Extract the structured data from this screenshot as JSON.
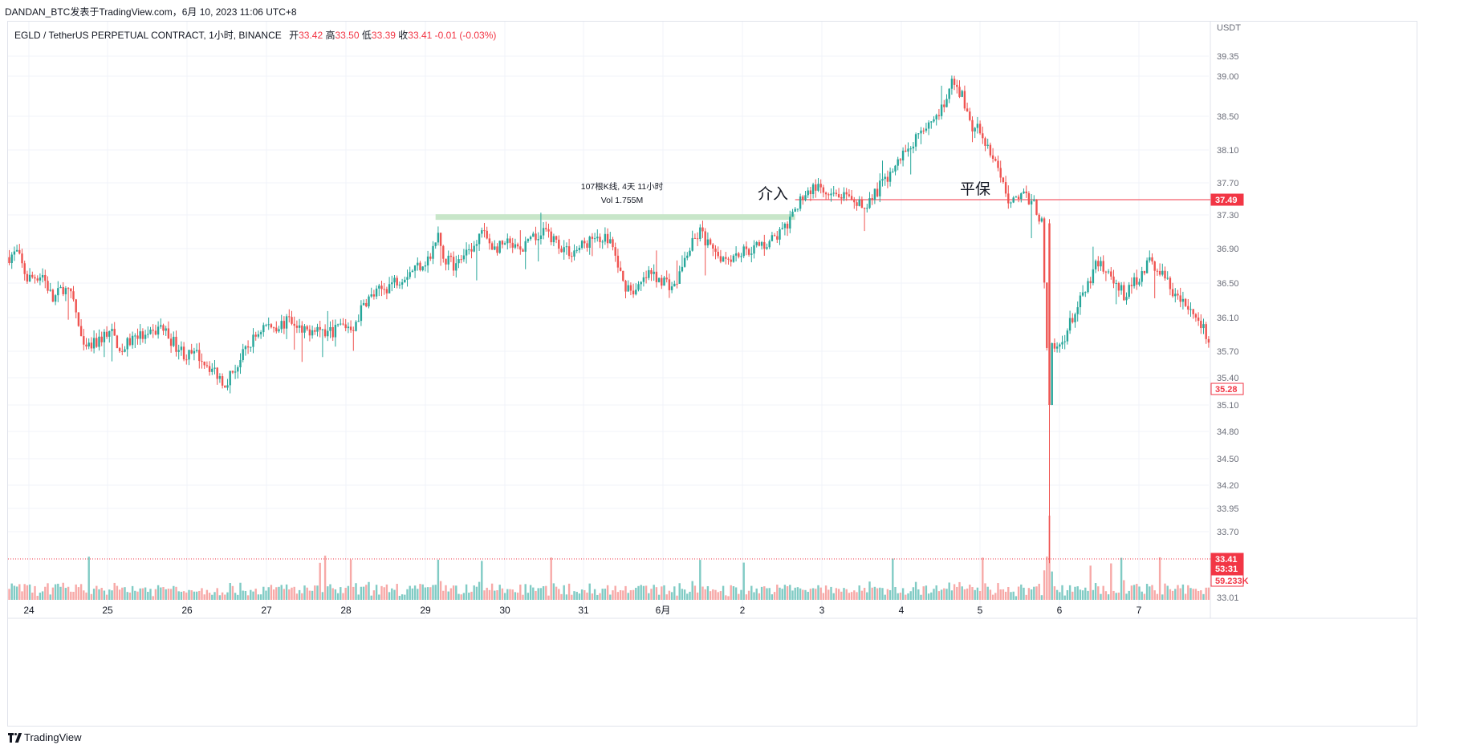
{
  "header": {
    "attribution": "DANDAN_BTC发表于TradingView.com，6月 10, 2023 11:06 UTC+8"
  },
  "legend": {
    "symbol": "EGLD / TetherUS PERPETUAL CONTRACT, 1小时, BINANCE",
    "open_label": "开",
    "open_value": "33.42",
    "high_label": "高",
    "high_value": "33.50",
    "low_label": "低",
    "low_value": "33.39",
    "close_label": "收",
    "close_value": "33.41",
    "change": "-0.01 (-0.03%)"
  },
  "footer": {
    "brand": "TradingView"
  },
  "colors": {
    "up": "#26a69a",
    "down": "#ef5350",
    "up_vol": "#80cbc4",
    "down_vol": "#f7a9a7",
    "range_bar": "#c8e6c9",
    "hline": "#f23645",
    "grid": "#f0f3fa",
    "axis_text": "#131722"
  },
  "chart_data": {
    "type": "candlestick",
    "currency_label": "USDT",
    "y_ticks": [
      "39.35",
      "39.00",
      "38.50",
      "38.10",
      "37.70",
      "37.30",
      "36.90",
      "36.50",
      "36.10",
      "35.70",
      "35.40",
      "35.10",
      "34.80",
      "34.50",
      "34.20",
      "33.95",
      "33.70",
      "33.01"
    ],
    "x_ticks": [
      "24",
      "25",
      "26",
      "27",
      "28",
      "29",
      "30",
      "31",
      "6月",
      "2",
      "3",
      "4",
      "5",
      "6",
      "7"
    ],
    "price_labels": {
      "horizontal_line": "37.49",
      "marked_level": "35.28",
      "last_price": "33.41",
      "countdown": "53:31",
      "volume": "59.233K"
    },
    "annotations": {
      "entry_text": "介入",
      "breakeven_text": "平保",
      "range_measure": "107根K线, 4天 11小时",
      "range_volume": "Vol 1.755M"
    },
    "horizontal_line_value": 37.49,
    "range_bar_value": 37.27,
    "current_price_line": 33.41,
    "waypoints": [
      [
        0,
        36.8
      ],
      [
        4,
        36.85
      ],
      [
        8,
        36.55
      ],
      [
        14,
        36.6
      ],
      [
        18,
        36.3
      ],
      [
        22,
        36.45
      ],
      [
        26,
        36.3
      ],
      [
        30,
        35.7
      ],
      [
        35,
        35.8
      ],
      [
        40,
        35.95
      ],
      [
        45,
        35.7
      ],
      [
        50,
        35.9
      ],
      [
        55,
        35.85
      ],
      [
        60,
        36.0
      ],
      [
        65,
        35.8
      ],
      [
        70,
        35.65
      ],
      [
        75,
        35.65
      ],
      [
        80,
        35.5
      ],
      [
        85,
        35.35
      ],
      [
        90,
        35.55
      ],
      [
        95,
        35.8
      ],
      [
        100,
        36.0
      ],
      [
        105,
        36.0
      ],
      [
        110,
        36.05
      ],
      [
        115,
        35.9
      ],
      [
        120,
        36.0
      ],
      [
        125,
        35.9
      ],
      [
        130,
        36.0
      ],
      [
        135,
        36.0
      ],
      [
        140,
        36.3
      ],
      [
        145,
        36.4
      ],
      [
        150,
        36.5
      ],
      [
        155,
        36.6
      ],
      [
        160,
        36.7
      ],
      [
        165,
        36.8
      ],
      [
        168,
        37.05
      ],
      [
        170,
        36.8
      ],
      [
        175,
        36.7
      ],
      [
        180,
        36.9
      ],
      [
        185,
        37.1
      ],
      [
        190,
        36.9
      ],
      [
        195,
        36.95
      ],
      [
        200,
        36.85
      ],
      [
        205,
        37.0
      ],
      [
        210,
        37.1
      ],
      [
        215,
        36.95
      ],
      [
        220,
        36.85
      ],
      [
        225,
        36.95
      ],
      [
        230,
        37.05
      ],
      [
        235,
        37.0
      ],
      [
        240,
        36.5
      ],
      [
        245,
        36.4
      ],
      [
        250,
        36.6
      ],
      [
        255,
        36.55
      ],
      [
        260,
        36.45
      ],
      [
        265,
        36.85
      ],
      [
        270,
        37.1
      ],
      [
        275,
        36.85
      ],
      [
        280,
        36.8
      ],
      [
        285,
        36.85
      ],
      [
        290,
        36.9
      ],
      [
        295,
        36.95
      ],
      [
        300,
        37.05
      ],
      [
        305,
        37.2
      ],
      [
        310,
        37.55
      ],
      [
        315,
        37.65
      ],
      [
        320,
        37.5
      ],
      [
        325,
        37.55
      ],
      [
        330,
        37.4
      ],
      [
        335,
        37.45
      ],
      [
        340,
        37.65
      ],
      [
        345,
        37.85
      ],
      [
        350,
        38.1
      ],
      [
        355,
        38.3
      ],
      [
        360,
        38.45
      ],
      [
        365,
        38.6
      ],
      [
        368,
        38.9
      ],
      [
        372,
        38.75
      ],
      [
        375,
        38.4
      ],
      [
        380,
        38.3
      ],
      [
        385,
        37.9
      ],
      [
        390,
        37.5
      ],
      [
        395,
        37.55
      ],
      [
        400,
        37.45
      ],
      [
        403,
        37.2
      ],
      [
        405,
        35.7
      ],
      [
        410,
        35.75
      ],
      [
        415,
        36.1
      ],
      [
        420,
        36.4
      ],
      [
        425,
        36.75
      ],
      [
        430,
        36.6
      ],
      [
        435,
        36.35
      ],
      [
        440,
        36.55
      ],
      [
        445,
        36.75
      ],
      [
        450,
        36.6
      ],
      [
        455,
        36.35
      ],
      [
        460,
        36.2
      ],
      [
        465,
        36.05
      ],
      [
        467,
        35.85
      ]
    ],
    "special_candles": {
      "405": [
        37.2,
        37.25,
        33.37,
        35.1
      ]
    }
  }
}
